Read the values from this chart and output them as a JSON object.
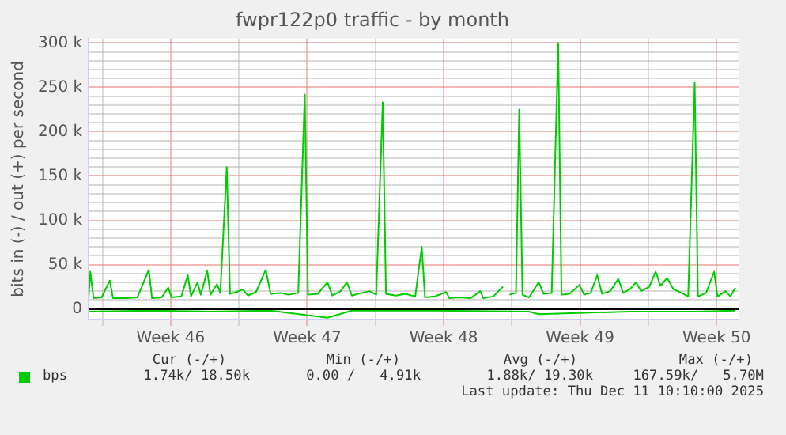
{
  "chart_data": {
    "type": "line",
    "title": "fwpr122p0 traffic - by month",
    "ylabel": "bits in (-) / out (+) per second",
    "xlim": [
      "2025-11-09T07:00",
      "2025-12-12T15:00"
    ],
    "xticks": [
      {
        "value": "2025-11-10T00:00",
        "label": null
      },
      {
        "value": "2025-11-13T12:00",
        "label": "Week 46"
      },
      {
        "value": "2025-11-17T00:00",
        "label": null
      },
      {
        "value": "2025-11-20T12:00",
        "label": "Week 47"
      },
      {
        "value": "2025-11-24T00:00",
        "label": null
      },
      {
        "value": "2025-11-27T12:00",
        "label": "Week 48"
      },
      {
        "value": "2025-12-01T00:00",
        "label": null
      },
      {
        "value": "2025-12-04T12:00",
        "label": "Week 49"
      },
      {
        "value": "2025-12-08T00:00",
        "label": null
      },
      {
        "value": "2025-12-11T12:00",
        "label": "Week 50"
      }
    ],
    "ylim": [
      -12000,
      305000
    ],
    "yticks": [
      {
        "value": 0,
        "label": "0"
      },
      {
        "value": 10000,
        "label": null
      },
      {
        "value": 20000,
        "label": null
      },
      {
        "value": 30000,
        "label": null
      },
      {
        "value": 40000,
        "label": null
      },
      {
        "value": 50000,
        "label": "50 k"
      },
      {
        "value": 60000,
        "label": null
      },
      {
        "value": 70000,
        "label": null
      },
      {
        "value": 80000,
        "label": null
      },
      {
        "value": 90000,
        "label": null
      },
      {
        "value": 100000,
        "label": "100 k"
      },
      {
        "value": 110000,
        "label": null
      },
      {
        "value": 120000,
        "label": null
      },
      {
        "value": 130000,
        "label": null
      },
      {
        "value": 140000,
        "label": null
      },
      {
        "value": 150000,
        "label": "150 k"
      },
      {
        "value": 160000,
        "label": null
      },
      {
        "value": 170000,
        "label": null
      },
      {
        "value": 180000,
        "label": null
      },
      {
        "value": 190000,
        "label": null
      },
      {
        "value": 200000,
        "label": "200 k"
      },
      {
        "value": 210000,
        "label": null
      },
      {
        "value": 220000,
        "label": null
      },
      {
        "value": 230000,
        "label": null
      },
      {
        "value": 240000,
        "label": null
      },
      {
        "value": 250000,
        "label": "250 k"
      },
      {
        "value": 260000,
        "label": null
      },
      {
        "value": 270000,
        "label": null
      },
      {
        "value": 280000,
        "label": null
      },
      {
        "value": 290000,
        "label": null
      },
      {
        "value": 300000,
        "label": "300 k"
      }
    ],
    "grid": true,
    "legend": "bottom",
    "marker": "none",
    "line_style": "solid",
    "ref_lines": [
      {
        "axis": "y",
        "value": 0,
        "color": "#000000"
      }
    ],
    "series": [
      {
        "name": "bps",
        "color": "#00cc00",
        "x": [
          "2025-11-09T07:00",
          "2025-11-09T09:00",
          "2025-11-09T13:00",
          "2025-11-09T23:00",
          "2025-11-10T09:00",
          "2025-11-10T13:00",
          "2025-11-11T05:00",
          "2025-11-11T19:00",
          "2025-11-12T09:00",
          "2025-11-12T13:00",
          "2025-11-13T01:00",
          "2025-11-13T09:00",
          "2025-11-13T13:00",
          "2025-11-14T01:00",
          "2025-11-14T09:00",
          "2025-11-14T13:00",
          "2025-11-14T21:00",
          "2025-11-15T01:00",
          "2025-11-15T09:00",
          "2025-11-15T13:00",
          "2025-11-15T21:00",
          "2025-11-16T01:00",
          "2025-11-16T09:00",
          "2025-11-16T13:00",
          "2025-11-16T21:00",
          "2025-11-17T05:00",
          "2025-11-17T11:00",
          "2025-11-17T21:00",
          "2025-11-18T09:00",
          "2025-11-18T15:00",
          "2025-11-19T03:00",
          "2025-11-19T13:00",
          "2025-11-20T01:00",
          "2025-11-20T09:00",
          "2025-11-20T13:00",
          "2025-11-21T01:00",
          "2025-11-21T13:00",
          "2025-11-21T19:00",
          "2025-11-22T05:00",
          "2025-11-22T13:00",
          "2025-11-22T19:00",
          "2025-11-23T07:00",
          "2025-11-23T17:00",
          "2025-11-24T01:00",
          "2025-11-24T09:00",
          "2025-11-24T13:00",
          "2025-11-25T01:00",
          "2025-11-25T13:00",
          "2025-11-26T01:00",
          "2025-11-26T09:00",
          "2025-11-26T13:00",
          "2025-11-27T01:00",
          "2025-11-27T15:00",
          "2025-11-27T19:00",
          "2025-11-28T07:00",
          "2025-11-28T21:00",
          "2025-11-29T09:00",
          "2025-11-29T13:00",
          "2025-11-30T01:00",
          "2025-11-30T13:00",
          "2025-11-30T17:00",
          "2025-11-30T21:00",
          "2025-12-01T05:00",
          "2025-12-01T09:00",
          "2025-12-01T13:00",
          "2025-12-01T21:00",
          "2025-12-02T09:00",
          "2025-12-02T15:00",
          "2025-12-03T01:00",
          "2025-12-03T09:00",
          "2025-12-03T13:00",
          "2025-12-03T23:00",
          "2025-12-04T11:00",
          "2025-12-04T17:00",
          "2025-12-05T01:00",
          "2025-12-05T09:00",
          "2025-12-05T15:00",
          "2025-12-06T01:00",
          "2025-12-06T11:00",
          "2025-12-06T17:00",
          "2025-12-07T01:00",
          "2025-12-07T09:00",
          "2025-12-07T15:00",
          "2025-12-08T01:00",
          "2025-12-08T09:00",
          "2025-12-08T15:00",
          "2025-12-08T23:00",
          "2025-12-09T07:00",
          "2025-12-09T17:00",
          "2025-12-10T01:00",
          "2025-12-10T09:00",
          "2025-12-10T13:00",
          "2025-12-10T23:00",
          "2025-12-11T09:00",
          "2025-12-11T13:00",
          "2025-12-11T23:00",
          "2025-12-12T05:00",
          "2025-12-12T11:00"
        ],
        "values": [
          12000,
          42000,
          12000,
          13000,
          32000,
          12000,
          12000,
          13000,
          44000,
          12000,
          13000,
          24000,
          13000,
          14000,
          38000,
          14000,
          30000,
          16000,
          43000,
          16000,
          28000,
          18000,
          160000,
          17000,
          19000,
          22000,
          15000,
          19000,
          44000,
          17000,
          18000,
          16000,
          18000,
          242000,
          16000,
          17000,
          30000,
          15000,
          20000,
          30000,
          15000,
          18000,
          20000,
          16000,
          233000,
          17000,
          15000,
          17000,
          14000,
          70000,
          13000,
          14000,
          19000,
          12000,
          13000,
          12000,
          20000,
          12000,
          14000,
          25000,
          null,
          16000,
          18000,
          225000,
          16000,
          13000,
          30000,
          17000,
          18000,
          300000,
          16000,
          17000,
          27000,
          16000,
          18000,
          38000,
          17000,
          20000,
          34000,
          18000,
          22000,
          30000,
          20000,
          25000,
          42000,
          26000,
          35000,
          22000,
          18000,
          14000,
          255000,
          14000,
          18000,
          42000,
          14000,
          20000,
          14000,
          24000
        ]
      },
      {
        "color": "#00cc00",
        "x": [
          "2025-11-09T07:00",
          "2025-11-12T09:00",
          "2025-11-15T09:00",
          "2025-11-18T15:00",
          "2025-11-21T13:00",
          "2025-11-22T19:00",
          "2025-11-27T01:00",
          "2025-12-01T21:00",
          "2025-12-02T09:00",
          "2025-12-07T01:00",
          "2025-12-10T09:00",
          "2025-12-12T11:00"
        ],
        "values": [
          -3000,
          -2000,
          -3000,
          -2000,
          -10000,
          -2000,
          -2000,
          -3000,
          -6000,
          -3000,
          -3000,
          -2000
        ]
      }
    ],
    "annotations": [
      "Cur (-/+)",
      "Min (-/+)",
      "Avg (-/+)",
      "Max (-/+)",
      "1.74k/ 18.50k",
      "0.00 /   4.91k",
      "1.88k/ 19.30k",
      "167.59k/   5.70M",
      "Last update: Thu Dec 11 10:10:00 2025"
    ]
  }
}
